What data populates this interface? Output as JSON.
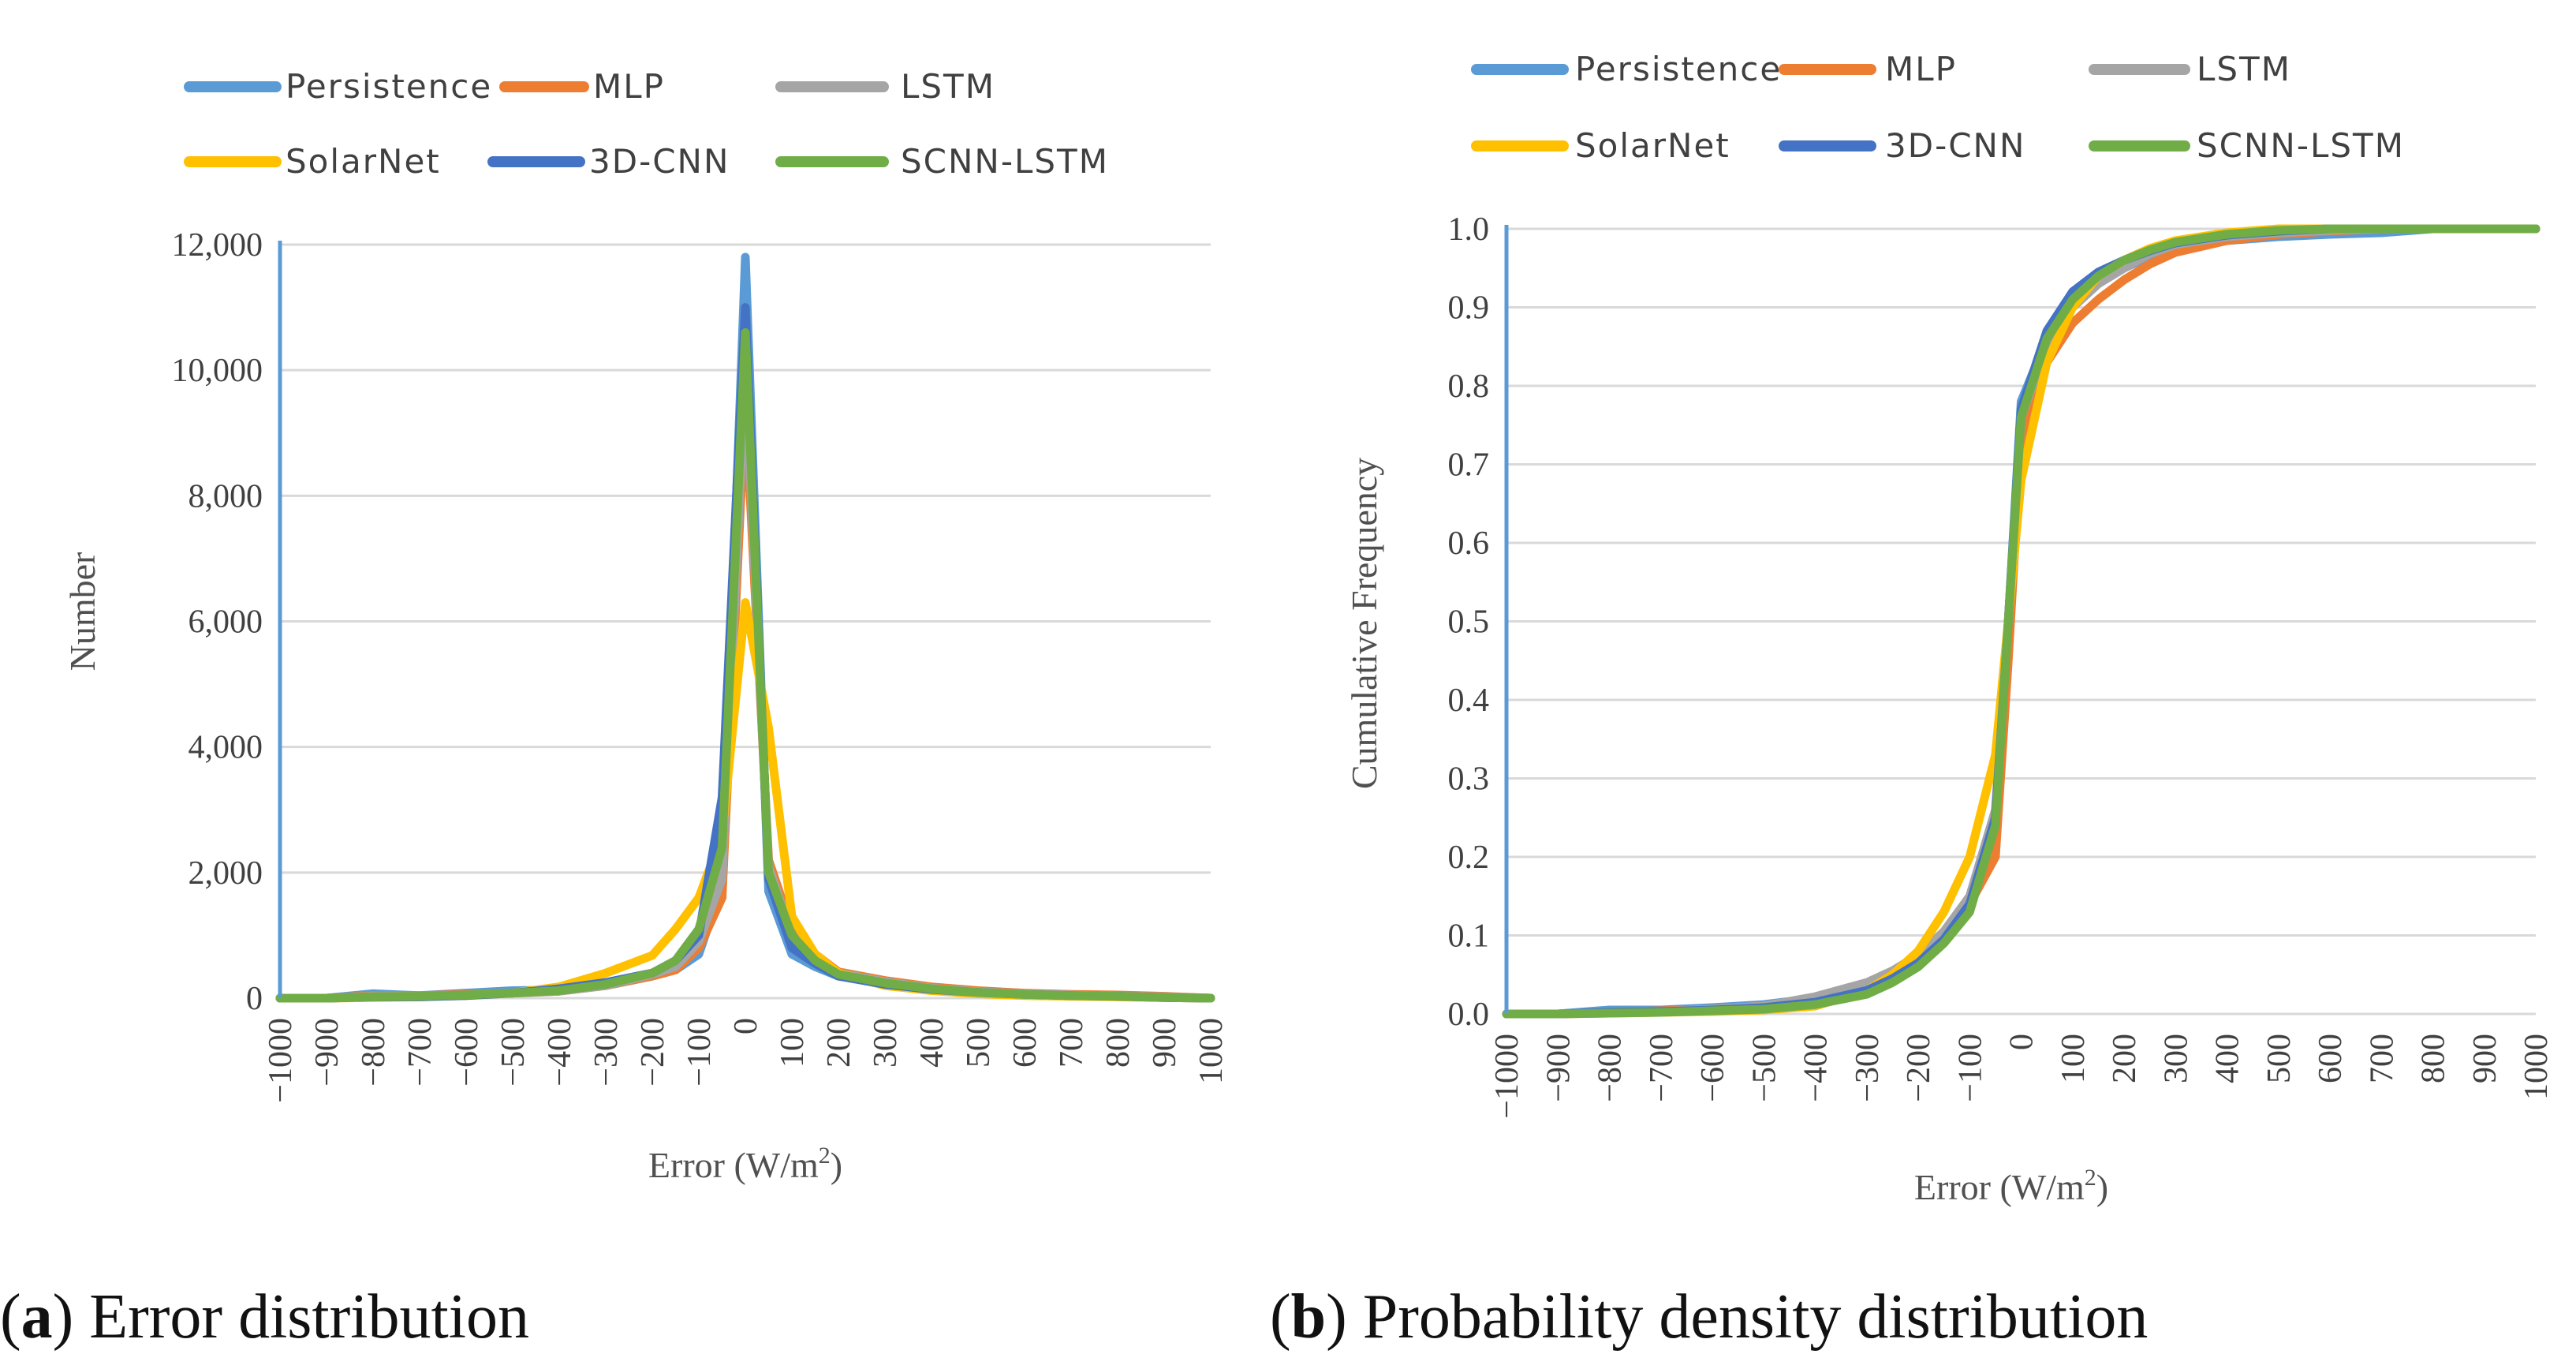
{
  "chart_data": [
    {
      "type": "line",
      "panel_label": "a",
      "caption": "Error distribution",
      "xlabel": "Error (W/m2)",
      "ylabel": "Number",
      "xlim": [
        -1000,
        1000
      ],
      "ylim": [
        0,
        12000
      ],
      "yticks": [
        0,
        2000,
        4000,
        6000,
        8000,
        10000,
        12000
      ],
      "ytick_labels": [
        "0",
        "2,000",
        "4,000",
        "6,000",
        "8,000",
        "10,000",
        "12,000"
      ],
      "xtick_labels": [
        "−1000",
        "−900",
        "−800",
        "−700",
        "−600",
        "−500",
        "−400",
        "−300",
        "−200",
        "−100",
        "0",
        "100",
        "200",
        "300",
        "400",
        "500",
        "600",
        "700",
        "800",
        "900",
        "1000"
      ],
      "x": [
        -1000,
        -900,
        -800,
        -700,
        -600,
        -500,
        -400,
        -300,
        -200,
        -150,
        -100,
        -50,
        0,
        50,
        100,
        150,
        200,
        300,
        400,
        500,
        600,
        700,
        800,
        900,
        1000
      ],
      "series": [
        {
          "name": "Persistence",
          "color": "#5b9bd5",
          "values": [
            0,
            0,
            70,
            40,
            80,
            120,
            130,
            200,
            350,
            450,
            700,
            1800,
            11800,
            1700,
            700,
            500,
            350,
            250,
            150,
            110,
            70,
            50,
            40,
            20,
            0
          ]
        },
        {
          "name": "MLP",
          "color": "#ed7d31",
          "values": [
            0,
            0,
            40,
            40,
            60,
            80,
            110,
            200,
            350,
            450,
            800,
            1600,
            9500,
            2200,
            1100,
            700,
            420,
            280,
            180,
            120,
            80,
            60,
            50,
            30,
            0
          ]
        },
        {
          "name": "LSTM",
          "color": "#a5a5a5",
          "values": [
            0,
            0,
            30,
            30,
            50,
            80,
            110,
            200,
            380,
            500,
            900,
            1900,
            10000,
            2100,
            1000,
            650,
            400,
            260,
            160,
            100,
            70,
            50,
            30,
            20,
            0
          ]
        },
        {
          "name": "SolarNet",
          "color": "#ffc000",
          "values": [
            0,
            0,
            10,
            20,
            40,
            80,
            180,
            400,
            680,
            1100,
            1600,
            2600,
            6300,
            4300,
            1300,
            700,
            400,
            200,
            120,
            70,
            40,
            30,
            20,
            10,
            0
          ]
        },
        {
          "name": "3D-CNN",
          "color": "#4472c4",
          "values": [
            0,
            0,
            20,
            20,
            40,
            80,
            150,
            250,
            400,
            600,
            1000,
            3200,
            11000,
            1900,
            800,
            550,
            350,
            220,
            140,
            90,
            60,
            40,
            30,
            10,
            0
          ]
        },
        {
          "name": "SCNN-LSTM",
          "color": "#70ad47",
          "values": [
            0,
            0,
            20,
            30,
            50,
            80,
            120,
            220,
            400,
            600,
            1100,
            2400,
            10600,
            2000,
            1000,
            600,
            380,
            240,
            150,
            90,
            60,
            40,
            30,
            10,
            0
          ]
        }
      ]
    },
    {
      "type": "line",
      "panel_label": "b",
      "caption": "Probability density distribution",
      "xlabel": "Error (W/m2)",
      "ylabel": "Cumulative  Frequency",
      "xlim": [
        -1000,
        1000
      ],
      "ylim": [
        0,
        1.0
      ],
      "yticks": [
        0,
        0.1,
        0.2,
        0.3,
        0.4,
        0.5,
        0.6,
        0.7,
        0.8,
        0.9,
        1.0
      ],
      "ytick_labels": [
        "0.0",
        "0.1",
        "0.2",
        "0.3",
        "0.4",
        "0.5",
        "0.6",
        "0.7",
        "0.8",
        "0.9",
        "1.0"
      ],
      "xtick_labels": [
        "−1000",
        "−900",
        "−800",
        "−700",
        "−600",
        "−500",
        "−400",
        "−300",
        "−200",
        "−100",
        "0",
        "100",
        "200",
        "300",
        "400",
        "500",
        "600",
        "700",
        "800",
        "900",
        "1000"
      ],
      "x": [
        -1000,
        -900,
        -800,
        -700,
        -600,
        -500,
        -400,
        -300,
        -250,
        -200,
        -150,
        -100,
        -50,
        -25,
        0,
        50,
        100,
        150,
        200,
        250,
        300,
        400,
        500,
        600,
        700,
        800,
        900,
        1000
      ],
      "series": [
        {
          "name": "Persistence",
          "color": "#5b9bd5",
          "values": [
            0,
            0,
            0.005,
            0.005,
            0.008,
            0.012,
            0.02,
            0.035,
            0.045,
            0.065,
            0.1,
            0.15,
            0.25,
            0.5,
            0.78,
            0.86,
            0.9,
            0.93,
            0.95,
            0.965,
            0.975,
            0.985,
            0.99,
            0.993,
            0.995,
            1.0,
            1.0,
            1.0
          ]
        },
        {
          "name": "MLP",
          "color": "#ed7d31",
          "values": [
            0,
            0,
            0.002,
            0.004,
            0.006,
            0.01,
            0.018,
            0.035,
            0.05,
            0.07,
            0.1,
            0.14,
            0.2,
            0.45,
            0.73,
            0.83,
            0.88,
            0.91,
            0.935,
            0.955,
            0.97,
            0.985,
            0.993,
            0.997,
            1.0,
            1.0,
            1.0,
            1.0
          ]
        },
        {
          "name": "LSTM",
          "color": "#a5a5a5",
          "values": [
            0,
            0,
            0.002,
            0.003,
            0.006,
            0.01,
            0.022,
            0.04,
            0.055,
            0.075,
            0.105,
            0.15,
            0.26,
            0.5,
            0.76,
            0.85,
            0.9,
            0.93,
            0.95,
            0.968,
            0.98,
            0.99,
            0.995,
            0.998,
            1.0,
            1.0,
            1.0,
            1.0
          ]
        },
        {
          "name": "SolarNet",
          "color": "#ffc000",
          "values": [
            0,
            0,
            0.001,
            0.002,
            0.003,
            0.005,
            0.01,
            0.03,
            0.05,
            0.08,
            0.13,
            0.2,
            0.33,
            0.5,
            0.68,
            0.83,
            0.9,
            0.94,
            0.96,
            0.975,
            0.985,
            0.995,
            1.0,
            1.0,
            1.0,
            1.0,
            1.0,
            1.0
          ]
        },
        {
          "name": "3D-CNN",
          "color": "#4472c4",
          "values": [
            0,
            0,
            0.002,
            0.003,
            0.005,
            0.008,
            0.015,
            0.03,
            0.045,
            0.065,
            0.095,
            0.14,
            0.25,
            0.5,
            0.77,
            0.87,
            0.92,
            0.945,
            0.96,
            0.972,
            0.982,
            0.992,
            0.997,
            1.0,
            1.0,
            1.0,
            1.0,
            1.0
          ]
        },
        {
          "name": "SCNN-LSTM",
          "color": "#70ad47",
          "values": [
            0,
            0,
            0.001,
            0.002,
            0.004,
            0.006,
            0.012,
            0.025,
            0.04,
            0.06,
            0.09,
            0.13,
            0.24,
            0.5,
            0.76,
            0.86,
            0.91,
            0.94,
            0.96,
            0.973,
            0.983,
            0.993,
            0.998,
            1.0,
            1.0,
            1.0,
            1.0,
            1.0
          ]
        }
      ]
    }
  ]
}
